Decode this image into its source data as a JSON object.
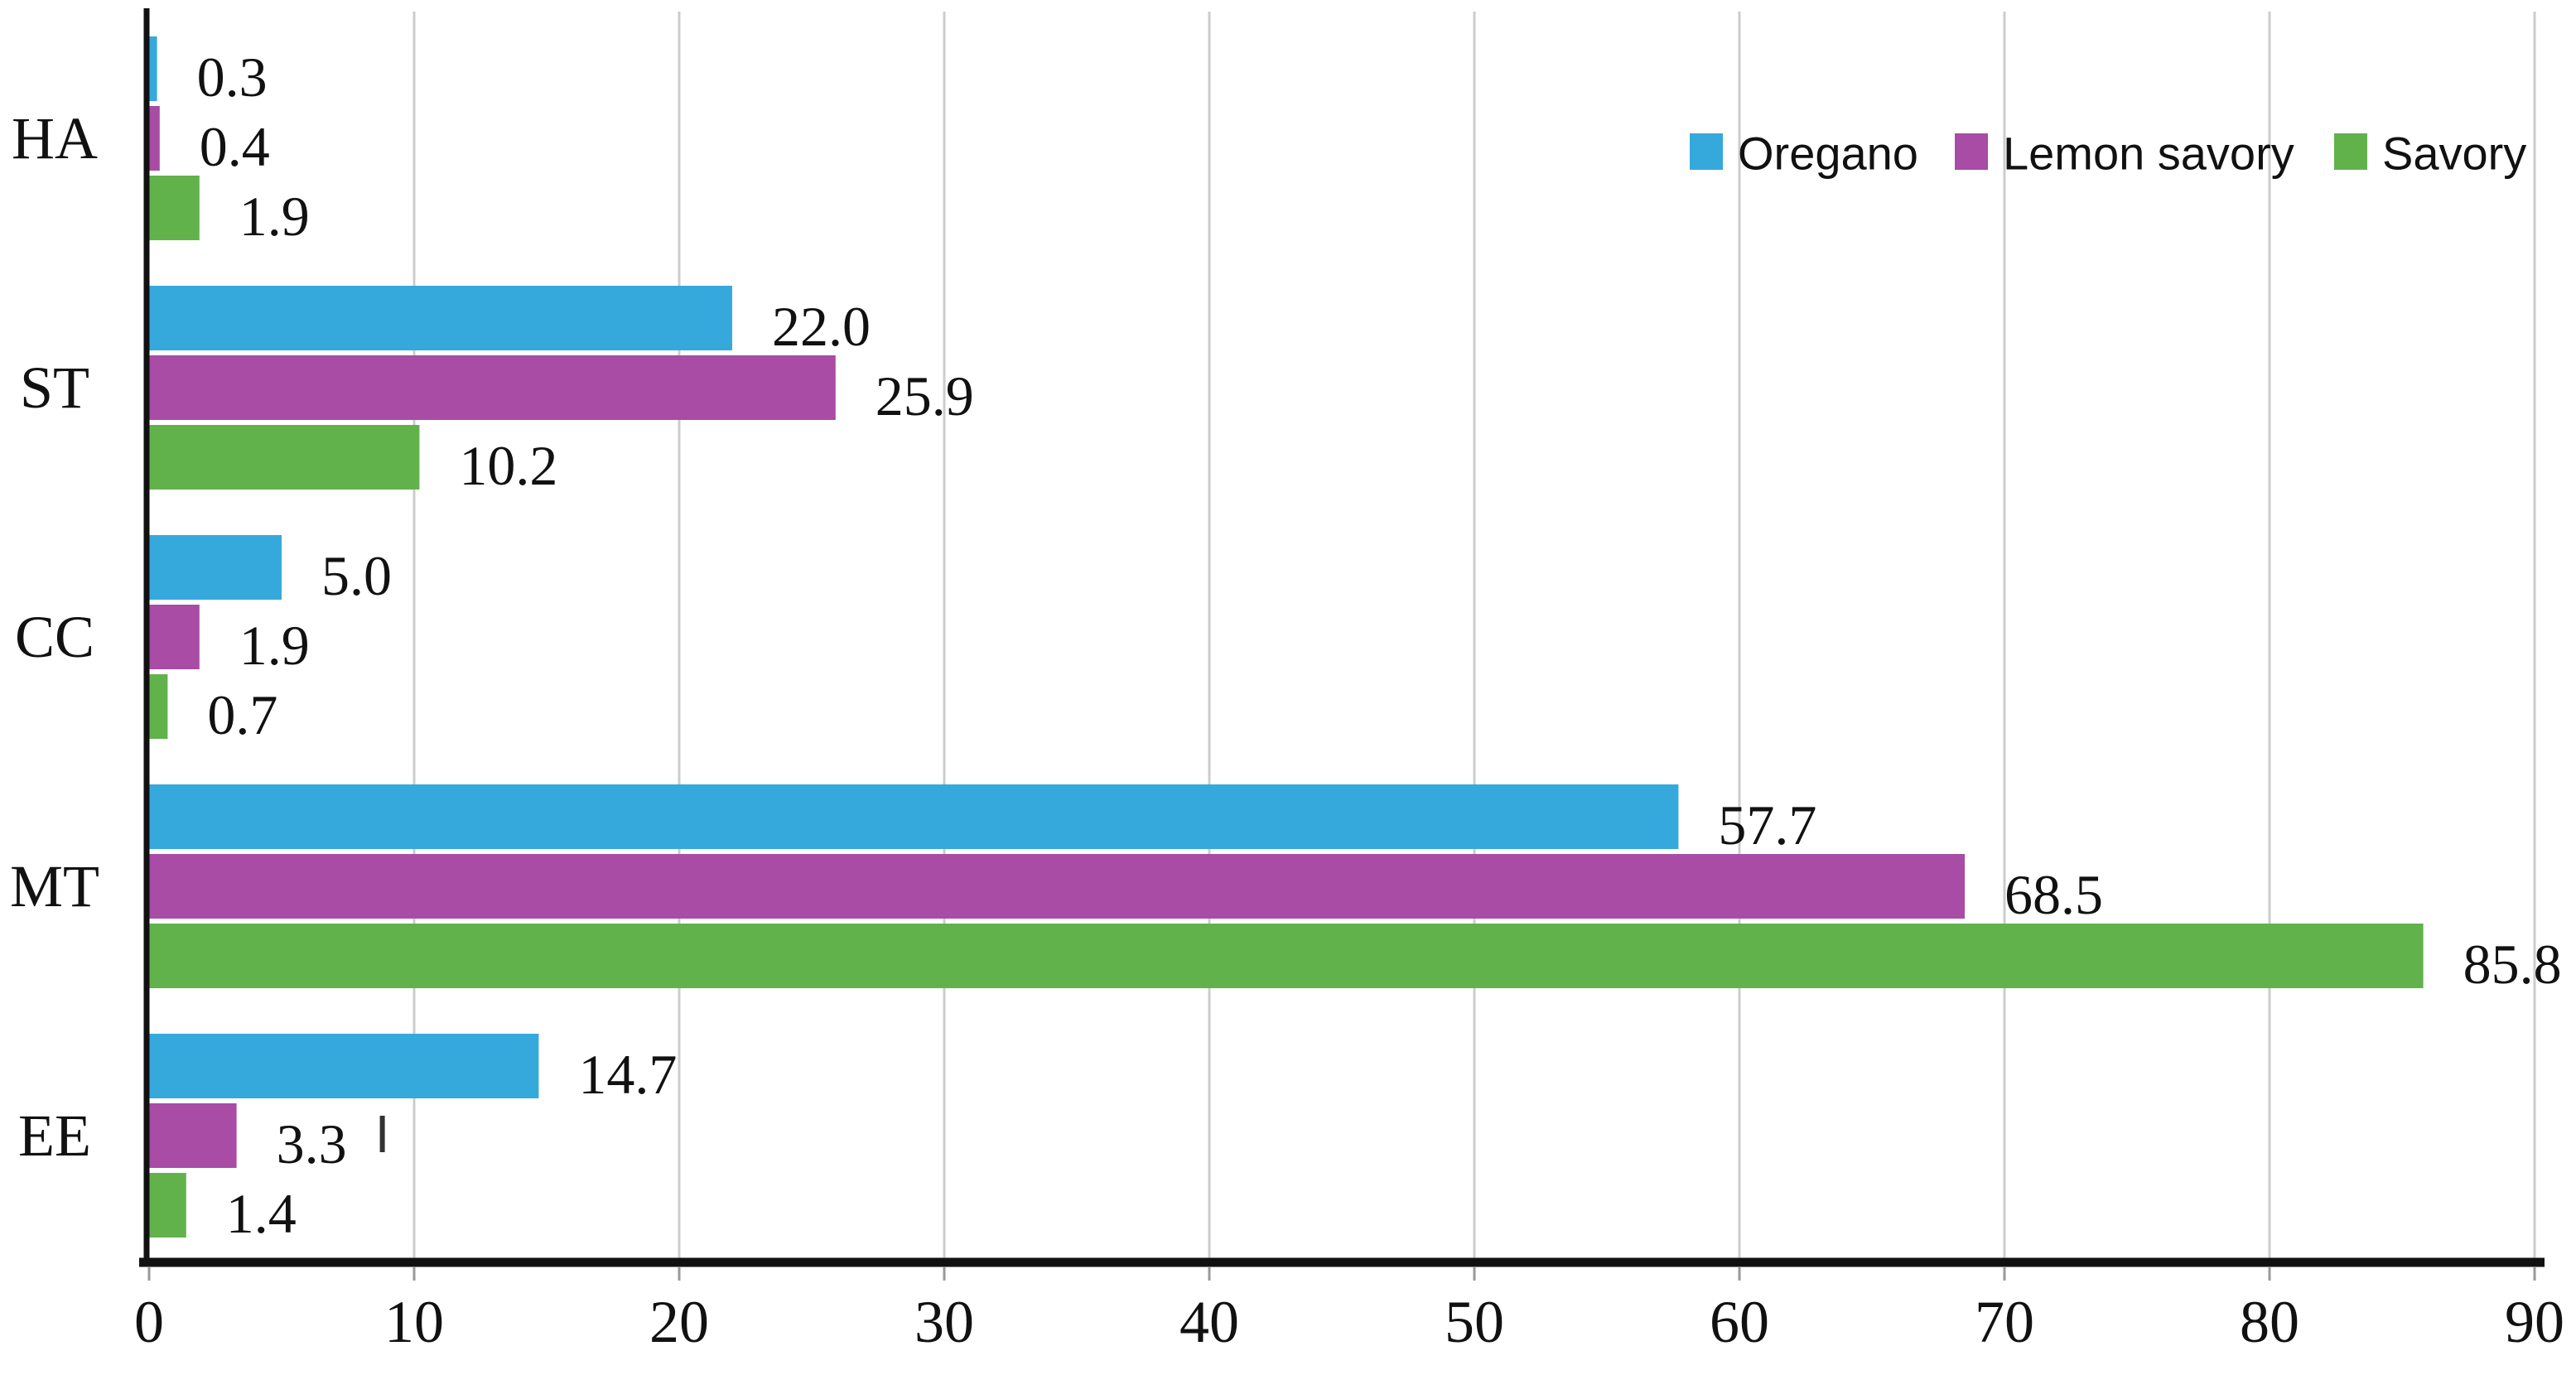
{
  "chart_data": {
    "type": "bar",
    "orientation": "horizontal",
    "title": "",
    "categories": [
      "HA",
      "ST",
      "CC",
      "MT",
      "EE"
    ],
    "series": [
      {
        "name": "Oregano",
        "color": "#35A9DC",
        "values": [
          0.3,
          22.0,
          5.0,
          57.7,
          14.7
        ]
      },
      {
        "name": "Lemon savory",
        "color": "#A84CA5",
        "values": [
          0.4,
          25.9,
          1.9,
          68.5,
          3.3
        ]
      },
      {
        "name": "Savory",
        "color": "#62B24B",
        "values": [
          1.9,
          10.2,
          0.7,
          85.8,
          1.4
        ]
      }
    ],
    "value_label_format": "one_decimal",
    "data_labels_shown": true,
    "xlim": [
      0,
      90
    ],
    "x_ticks": [
      0,
      10,
      20,
      30,
      40,
      50,
      60,
      70,
      80,
      90
    ],
    "grid": true,
    "legend_position": "top-right",
    "error_tick_marks": [
      {
        "category": "EE",
        "series": "Lemon savory",
        "after_label": "3.3"
      }
    ]
  },
  "styles": {
    "background": "#ffffff",
    "bar_blue": "#35A9DC",
    "bar_purple": "#A84CA5",
    "bar_green": "#62B24B",
    "grid_color": "#cccccc",
    "axis_color": "#111111",
    "text_color": "#111111",
    "tick_color": "#999999"
  }
}
